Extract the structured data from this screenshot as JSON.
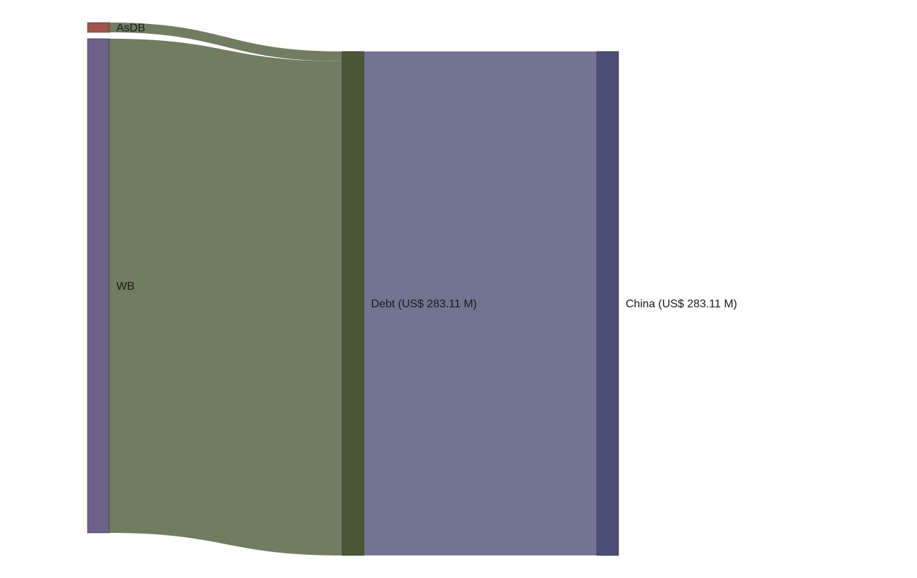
{
  "chart_data": {
    "type": "sankey",
    "nodes": [
      {
        "id": "asdb",
        "label": "AsDB",
        "column": 0,
        "color": "#a0554a"
      },
      {
        "id": "wb",
        "label": "WB",
        "column": 0,
        "color": "#6b6189"
      },
      {
        "id": "debt",
        "label": "Debt (US$ 283.11 M)",
        "column": 1,
        "color": "#4a5636"
      },
      {
        "id": "china",
        "label": "China (US$ 283.11 M)",
        "column": 2,
        "color": "#4d4c77"
      }
    ],
    "links": [
      {
        "source": "asdb",
        "target": "debt",
        "value": 5.5,
        "color": "#717c60"
      },
      {
        "source": "wb",
        "target": "debt",
        "value": 277.61,
        "color": "#717c60"
      },
      {
        "source": "debt",
        "target": "china",
        "value": 283.11,
        "color": "#737492"
      }
    ]
  }
}
